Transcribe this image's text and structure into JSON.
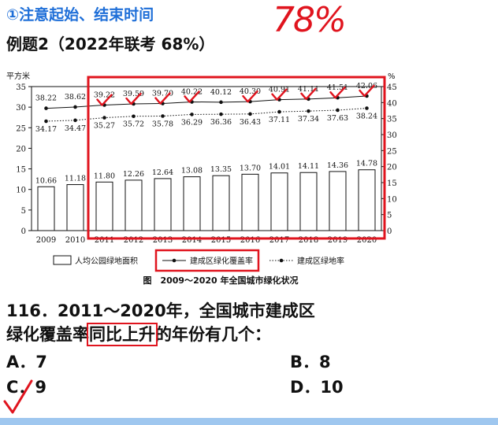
{
  "heading": "①注意起始、结束时间",
  "example": "例题2（2022年联考  68%）",
  "handwritten_note": "78%",
  "question": {
    "line1": "116．2011～2020年，全国城市建成区",
    "line2_pre": "绿化覆盖率",
    "line2_hl": "同比上升",
    "line2_post": "的年份有几个：",
    "options": {
      "A": "A．7",
      "B": "B．8",
      "C": "C．9",
      "D": "D．10"
    }
  },
  "colors": {
    "heading": "#1f6fd8",
    "annotation": "#e0141e",
    "bar_fill": "#ffffff",
    "ink": "#111111"
  },
  "chart_data": {
    "type": "bar+line",
    "title": "图　2009～2020 年全国城市绿化状况",
    "ylabel_left": "平方米",
    "ylabel_right": "%",
    "ylim_left": [
      0,
      35
    ],
    "ylim_right": [
      0,
      45
    ],
    "yticks_left": [
      0,
      5,
      10,
      15,
      20,
      25,
      30,
      35
    ],
    "yticks_right": [
      0,
      5,
      10,
      15,
      20,
      25,
      30,
      35,
      40,
      45
    ],
    "categories": [
      "2009",
      "2010",
      "2011",
      "2012",
      "2013",
      "2014",
      "2015",
      "2016",
      "2017",
      "2018",
      "2019",
      "2020"
    ],
    "series": [
      {
        "name": "人均公园绿地面积",
        "kind": "bar",
        "axis": "left",
        "values": [
          10.66,
          11.18,
          11.8,
          12.26,
          12.64,
          13.08,
          13.35,
          13.7,
          14.01,
          14.11,
          14.36,
          14.78
        ]
      },
      {
        "name": "建成区绿化覆盖率",
        "kind": "line",
        "style": "solid",
        "axis": "right",
        "values": [
          38.22,
          38.62,
          39.22,
          39.59,
          39.7,
          40.22,
          40.12,
          40.3,
          40.91,
          41.11,
          41.51,
          42.06
        ]
      },
      {
        "name": "建成区绿地率",
        "kind": "line",
        "style": "dotted",
        "axis": "right",
        "values": [
          34.17,
          34.47,
          35.27,
          35.72,
          35.78,
          36.29,
          36.36,
          36.43,
          37.11,
          37.34,
          37.63,
          38.24
        ]
      }
    ],
    "legend_position": "bottom"
  }
}
